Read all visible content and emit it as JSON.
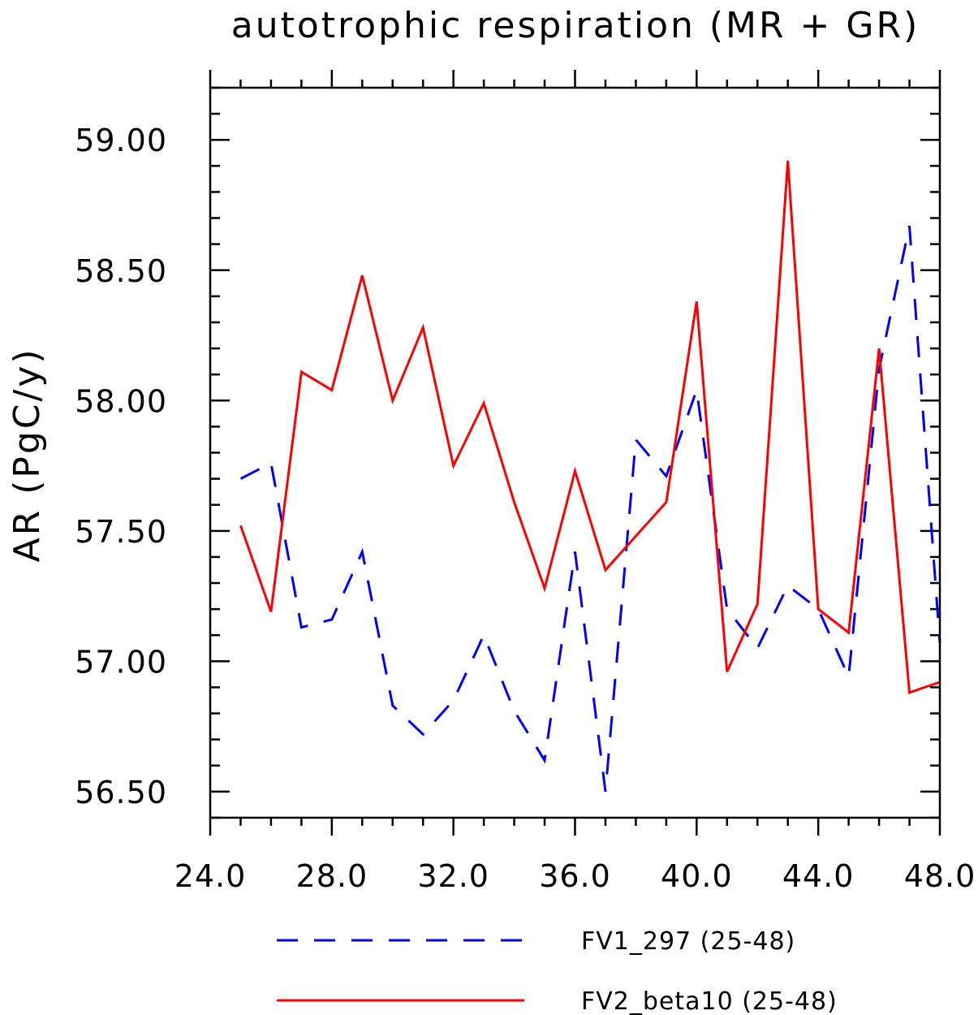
{
  "chart_data": {
    "type": "line",
    "title": "autotrophic respiration (MR + GR)",
    "xlabel": "",
    "ylabel": "AR  (PgC/y)",
    "xlim": [
      24.0,
      48.0
    ],
    "ylim": [
      56.4,
      59.2
    ],
    "x_ticks": [
      24.0,
      28.0,
      32.0,
      36.0,
      40.0,
      44.0,
      48.0
    ],
    "x_tick_labels": [
      "24.0",
      "28.0",
      "32.0",
      "36.0",
      "40.0",
      "44.0",
      "48.0"
    ],
    "y_ticks": [
      56.5,
      57.0,
      57.5,
      58.0,
      58.5,
      59.0
    ],
    "y_tick_labels": [
      "56.50",
      "57.00",
      "57.50",
      "58.00",
      "58.50",
      "59.00"
    ],
    "grid": false,
    "legend_position": "bottom",
    "x": [
      25,
      26,
      27,
      28,
      29,
      30,
      31,
      32,
      33,
      34,
      35,
      36,
      37,
      38,
      39,
      40,
      41,
      42,
      43,
      44,
      45,
      46,
      47,
      48
    ],
    "series": [
      {
        "name": "FV1_297 (25-48)",
        "color": "#0000ff",
        "dash": "dashed",
        "values": [
          57.7,
          57.76,
          57.13,
          57.16,
          57.42,
          56.83,
          56.72,
          56.85,
          57.1,
          56.81,
          56.62,
          57.42,
          56.5,
          57.85,
          57.71,
          58.04,
          57.2,
          57.05,
          57.29,
          57.2,
          56.94,
          58.12,
          58.67,
          57.07
        ]
      },
      {
        "name": "FV2_beta10 (25-48)",
        "color": "#ff0000",
        "dash": "solid",
        "values": [
          57.52,
          57.19,
          58.11,
          58.04,
          58.48,
          58.0,
          58.28,
          57.75,
          57.99,
          57.61,
          57.28,
          57.73,
          57.35,
          57.48,
          57.61,
          58.38,
          56.96,
          57.22,
          58.92,
          57.2,
          57.11,
          58.2,
          56.88,
          56.92
        ]
      }
    ]
  }
}
